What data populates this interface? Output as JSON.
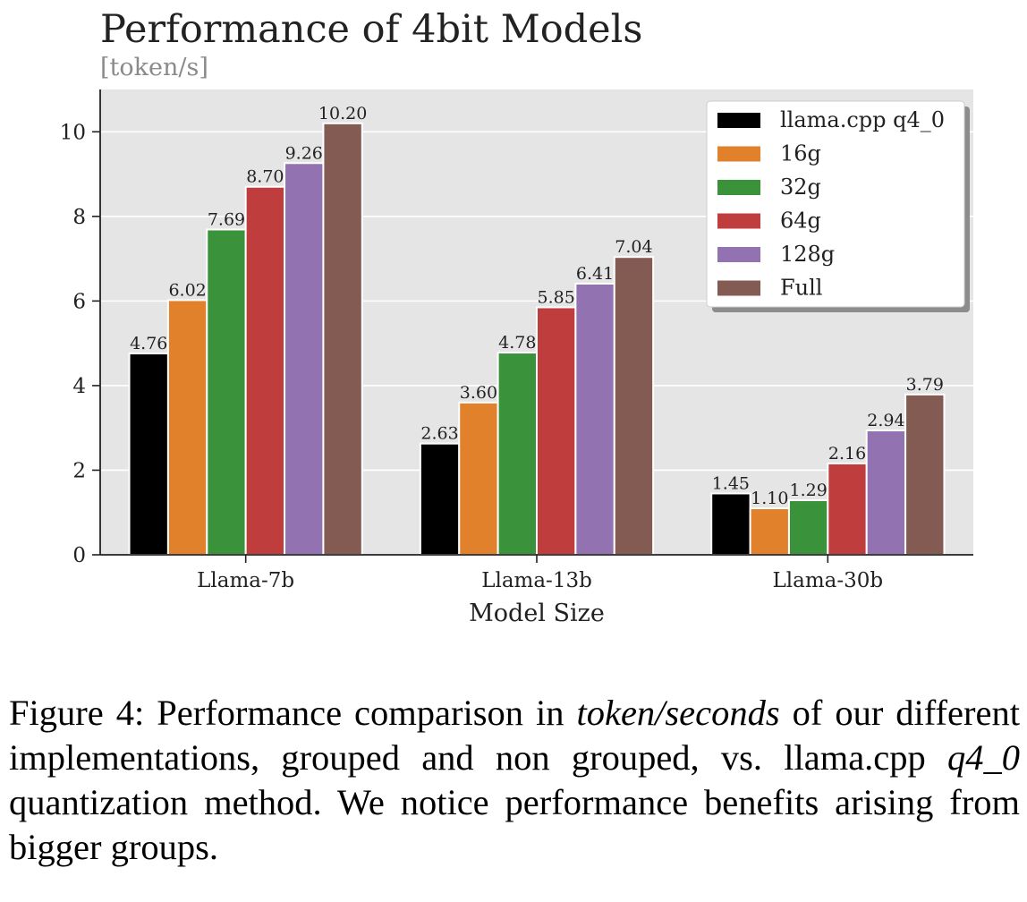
{
  "chart_data": {
    "type": "bar",
    "title": "Performance of 4bit Models",
    "subtitle": "[token/s]",
    "xlabel": "Model Size",
    "ylabel": "",
    "categories": [
      "Llama-7b",
      "Llama-13b",
      "Llama-30b"
    ],
    "ylim": [
      0,
      11
    ],
    "yticks": [
      0,
      2,
      4,
      6,
      8,
      10
    ],
    "grid": true,
    "legend_position": "top-right",
    "series": [
      {
        "name": "llama.cpp q4_0",
        "color": "#000000",
        "values": [
          4.76,
          2.63,
          1.45
        ],
        "labels": [
          "4.76",
          "2.63",
          "1.45"
        ]
      },
      {
        "name": "16g",
        "color": "#e1812c",
        "values": [
          6.02,
          3.6,
          1.1
        ],
        "labels": [
          "6.02",
          "3.60",
          "1.10"
        ]
      },
      {
        "name": "32g",
        "color": "#3a923a",
        "values": [
          7.69,
          4.78,
          1.29
        ],
        "labels": [
          "7.69",
          "4.78",
          "1.29"
        ]
      },
      {
        "name": "64g",
        "color": "#c03d3e",
        "values": [
          8.7,
          5.85,
          2.16
        ],
        "labels": [
          "8.70",
          "5.85",
          "2.16"
        ]
      },
      {
        "name": "128g",
        "color": "#9372b2",
        "values": [
          9.26,
          6.41,
          2.94
        ],
        "labels": [
          "9.26",
          "6.41",
          "2.94"
        ]
      },
      {
        "name": "Full",
        "color": "#845b53",
        "values": [
          10.2,
          7.04,
          3.79
        ],
        "labels": [
          "10.20",
          "7.04",
          "3.79"
        ]
      }
    ]
  },
  "caption": {
    "prefix": "Figure 4: Performance comparison in ",
    "emph1": "token/seconds",
    "middle": " of our different implementations, grouped and non grouped, vs. llama.cpp ",
    "emph2": "q4_0",
    "suffix": " quantization method. We notice performance benefits arising from bigger groups."
  }
}
